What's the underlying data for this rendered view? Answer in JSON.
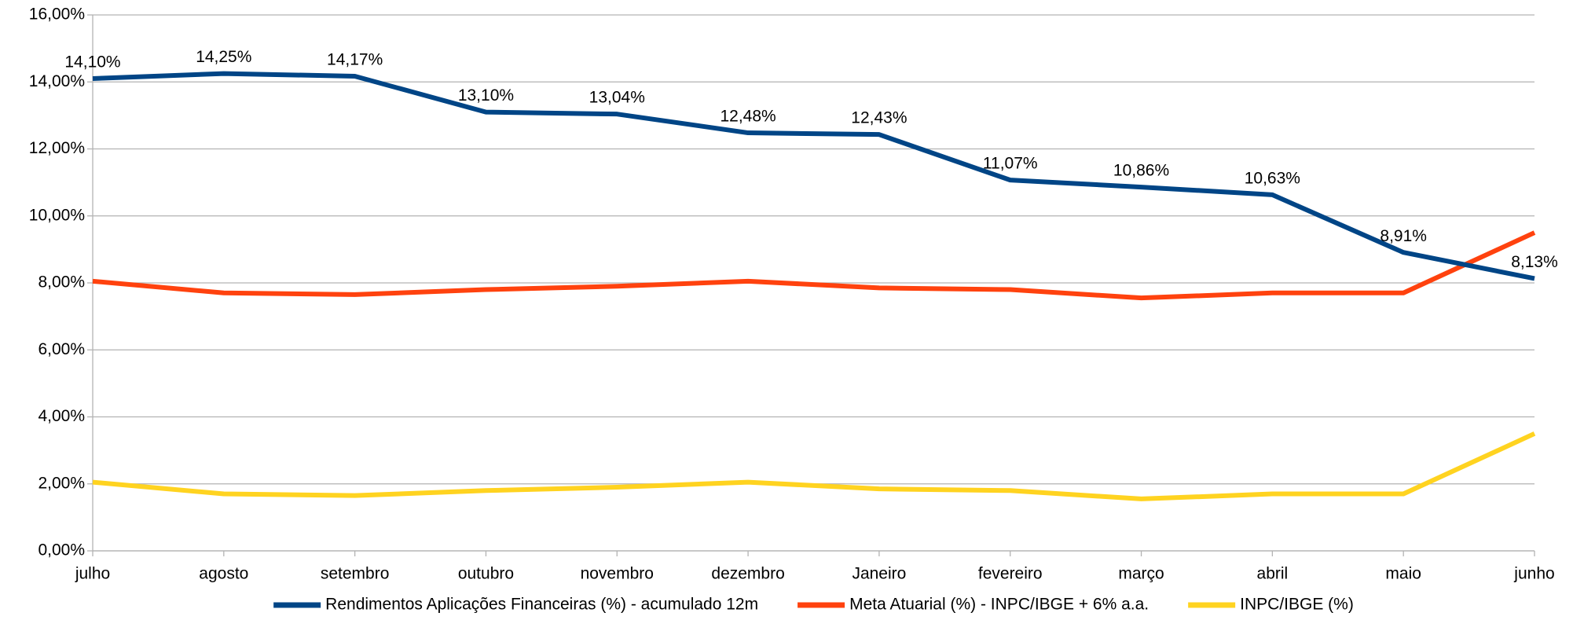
{
  "chart_data": {
    "type": "line",
    "categories": [
      "julho",
      "agosto",
      "setembro",
      "outubro",
      "novembro",
      "dezembro",
      "Janeiro",
      "fevereiro",
      "março",
      "abril",
      "maio",
      "junho"
    ],
    "series": [
      {
        "name": "Rendimentos Aplicações Financeiras (%) - acumulado 12m",
        "color": "#004586",
        "values": [
          14.1,
          14.25,
          14.17,
          13.1,
          13.04,
          12.48,
          12.43,
          11.07,
          10.86,
          10.63,
          8.91,
          8.13
        ],
        "value_labels": [
          "14,10%",
          "14,25%",
          "14,17%",
          "13,10%",
          "13,04%",
          "12,48%",
          "12,43%",
          "11,07%",
          "10,86%",
          "10,63%",
          "8,91%",
          "8,13%"
        ]
      },
      {
        "name": "Meta Atuarial (%) - INPC/IBGE + 6% a.a.",
        "color": "#ff420e",
        "values": [
          8.05,
          7.7,
          7.65,
          7.8,
          7.9,
          8.05,
          7.85,
          7.8,
          7.55,
          7.7,
          7.7,
          9.5
        ]
      },
      {
        "name": "INPC/IBGE (%)",
        "color": "#ffd320",
        "values": [
          2.05,
          1.7,
          1.65,
          1.8,
          1.9,
          2.05,
          1.85,
          1.8,
          1.55,
          1.7,
          1.7,
          3.5
        ]
      }
    ],
    "ylim": [
      0,
      16
    ],
    "yticks": [
      {
        "value": 0,
        "label": "0,00%"
      },
      {
        "value": 2,
        "label": "2,00%"
      },
      {
        "value": 4,
        "label": "4,00%"
      },
      {
        "value": 6,
        "label": "6,00%"
      },
      {
        "value": 8,
        "label": "8,00%"
      },
      {
        "value": 10,
        "label": "10,00%"
      },
      {
        "value": 12,
        "label": "12,00%"
      },
      {
        "value": 14,
        "label": "14,00%"
      },
      {
        "value": 16,
        "label": "16,00%"
      }
    ],
    "grid": true,
    "legend": "bottom"
  }
}
